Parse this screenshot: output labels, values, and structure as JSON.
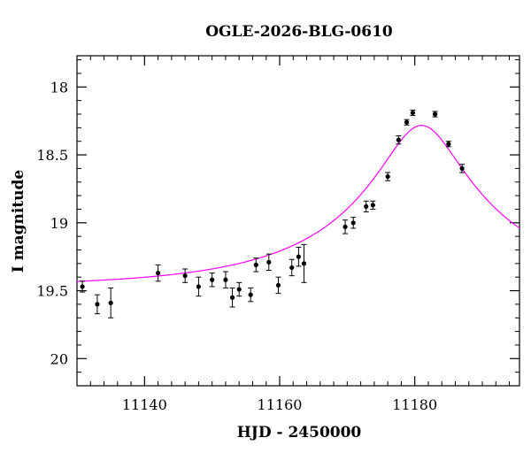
{
  "chart_data": {
    "type": "scatter",
    "title": "OGLE-2026-BLG-0610",
    "xlabel": "HJD - 2450000",
    "ylabel": "I magnitude",
    "xlim": [
      11130,
      11195.5
    ],
    "ylim": [
      20.2,
      17.77
    ],
    "y_inverted": true,
    "xticks": [
      11140,
      11160,
      11180
    ],
    "yticks": [
      18,
      18.5,
      19,
      19.5,
      20
    ],
    "x_minor_step": 2,
    "y_minor_step": 0.1,
    "colors": {
      "model": "#ff00ff",
      "points": "#000000",
      "axes": "#000000"
    },
    "series": [
      {
        "type": "errorbar",
        "points": [
          {
            "x": 11130.8,
            "y": 19.47,
            "err": 0.04
          },
          {
            "x": 11133.0,
            "y": 19.6,
            "err": 0.07
          },
          {
            "x": 11135.0,
            "y": 19.59,
            "err": 0.11
          },
          {
            "x": 11142.0,
            "y": 19.37,
            "err": 0.06
          },
          {
            "x": 11146.0,
            "y": 19.39,
            "err": 0.05
          },
          {
            "x": 11148.0,
            "y": 19.47,
            "err": 0.07
          },
          {
            "x": 11150.0,
            "y": 19.42,
            "err": 0.05
          },
          {
            "x": 11152.0,
            "y": 19.42,
            "err": 0.06
          },
          {
            "x": 11153.0,
            "y": 19.55,
            "err": 0.07
          },
          {
            "x": 11154.0,
            "y": 19.49,
            "err": 0.05
          },
          {
            "x": 11155.7,
            "y": 19.53,
            "err": 0.05
          },
          {
            "x": 11156.5,
            "y": 19.31,
            "err": 0.05
          },
          {
            "x": 11158.4,
            "y": 19.29,
            "err": 0.06
          },
          {
            "x": 11159.8,
            "y": 19.46,
            "err": 0.06
          },
          {
            "x": 11161.8,
            "y": 19.33,
            "err": 0.06
          },
          {
            "x": 11162.8,
            "y": 19.25,
            "err": 0.07
          },
          {
            "x": 11163.6,
            "y": 19.3,
            "err": 0.14
          },
          {
            "x": 11169.7,
            "y": 19.03,
            "err": 0.05
          },
          {
            "x": 11170.9,
            "y": 19.0,
            "err": 0.04
          },
          {
            "x": 11172.8,
            "y": 18.88,
            "err": 0.04
          },
          {
            "x": 11173.8,
            "y": 18.87,
            "err": 0.03
          },
          {
            "x": 11176.0,
            "y": 18.66,
            "err": 0.03
          },
          {
            "x": 11177.6,
            "y": 18.39,
            "err": 0.03
          },
          {
            "x": 11178.8,
            "y": 18.26,
            "err": 0.02
          },
          {
            "x": 11179.7,
            "y": 18.19,
            "err": 0.02
          },
          {
            "x": 11183.0,
            "y": 18.2,
            "err": 0.02
          },
          {
            "x": 11185.0,
            "y": 18.42,
            "err": 0.02
          },
          {
            "x": 11187.0,
            "y": 18.6,
            "err": 0.03
          }
        ]
      },
      {
        "type": "model_curve",
        "model": {
          "t0": 11181.0,
          "tE": 28.0,
          "u0": 0.2,
          "I_source": 20.25,
          "I_blend": 20.2
        }
      }
    ]
  }
}
